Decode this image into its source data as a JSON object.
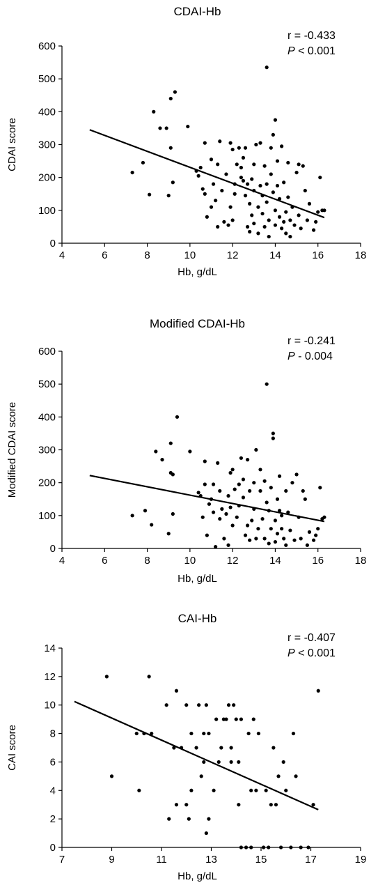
{
  "chart_data": [
    {
      "type": "scatter",
      "title": "CDAI-Hb",
      "xlabel": "Hb, g/dL",
      "ylabel": "CDAI score",
      "xlim": [
        4,
        18
      ],
      "ylim": [
        0,
        600
      ],
      "xticks": [
        4,
        6,
        8,
        10,
        12,
        14,
        16,
        18
      ],
      "yticks": [
        0,
        100,
        200,
        300,
        400,
        500,
        600
      ],
      "grid": false,
      "annotation": {
        "r": "r = -0.433",
        "p_italic": "P",
        "p_rest": " < 0.001"
      },
      "trendline": {
        "x": [
          5.3,
          16.3
        ],
        "y": [
          345,
          78
        ]
      },
      "points": [
        [
          7.3,
          215
        ],
        [
          7.8,
          245
        ],
        [
          8.1,
          148
        ],
        [
          8.3,
          400
        ],
        [
          8.6,
          350
        ],
        [
          8.9,
          350
        ],
        [
          9.0,
          145
        ],
        [
          9.1,
          440
        ],
        [
          9.1,
          290
        ],
        [
          9.2,
          185
        ],
        [
          9.3,
          460
        ],
        [
          9.9,
          355
        ],
        [
          10.3,
          220
        ],
        [
          10.4,
          205
        ],
        [
          10.5,
          230
        ],
        [
          10.6,
          165
        ],
        [
          10.7,
          305
        ],
        [
          10.7,
          150
        ],
        [
          10.8,
          80
        ],
        [
          11.0,
          255
        ],
        [
          11.0,
          110
        ],
        [
          11.1,
          180
        ],
        [
          11.2,
          130
        ],
        [
          11.3,
          50
        ],
        [
          11.3,
          240
        ],
        [
          11.4,
          310
        ],
        [
          11.5,
          160
        ],
        [
          11.6,
          65
        ],
        [
          11.7,
          210
        ],
        [
          11.8,
          55
        ],
        [
          11.9,
          305
        ],
        [
          11.9,
          110
        ],
        [
          12.0,
          70
        ],
        [
          12.0,
          285
        ],
        [
          12.1,
          180
        ],
        [
          12.1,
          150
        ],
        [
          12.2,
          240
        ],
        [
          12.3,
          290
        ],
        [
          12.4,
          200
        ],
        [
          12.4,
          230
        ],
        [
          12.5,
          260
        ],
        [
          12.5,
          190
        ],
        [
          12.6,
          145
        ],
        [
          12.6,
          290
        ],
        [
          12.7,
          50
        ],
        [
          12.7,
          180
        ],
        [
          12.8,
          35
        ],
        [
          12.8,
          120
        ],
        [
          12.9,
          195
        ],
        [
          12.9,
          85
        ],
        [
          13.0,
          160
        ],
        [
          13.0,
          240
        ],
        [
          13.0,
          60
        ],
        [
          13.1,
          300
        ],
        [
          13.2,
          110
        ],
        [
          13.2,
          30
        ],
        [
          13.3,
          305
        ],
        [
          13.3,
          175
        ],
        [
          13.4,
          145
        ],
        [
          13.4,
          90
        ],
        [
          13.5,
          235
        ],
        [
          13.5,
          50
        ],
        [
          13.6,
          535
        ],
        [
          13.6,
          180
        ],
        [
          13.6,
          125
        ],
        [
          13.7,
          20
        ],
        [
          13.7,
          70
        ],
        [
          13.8,
          290
        ],
        [
          13.8,
          210
        ],
        [
          13.9,
          330
        ],
        [
          13.9,
          155
        ],
        [
          14.0,
          375
        ],
        [
          14.0,
          100
        ],
        [
          14.0,
          55
        ],
        [
          14.1,
          175
        ],
        [
          14.1,
          250
        ],
        [
          14.2,
          135
        ],
        [
          14.2,
          80
        ],
        [
          14.3,
          45
        ],
        [
          14.3,
          295
        ],
        [
          14.4,
          185
        ],
        [
          14.4,
          65
        ],
        [
          14.5,
          95
        ],
        [
          14.5,
          30
        ],
        [
          14.6,
          140
        ],
        [
          14.6,
          245
        ],
        [
          14.7,
          70
        ],
        [
          14.7,
          20
        ],
        [
          14.8,
          110
        ],
        [
          14.9,
          55
        ],
        [
          15.0,
          215
        ],
        [
          15.1,
          240
        ],
        [
          15.1,
          85
        ],
        [
          15.2,
          45
        ],
        [
          15.3,
          235
        ],
        [
          15.4,
          160
        ],
        [
          15.5,
          70
        ],
        [
          15.6,
          120
        ],
        [
          15.8,
          40
        ],
        [
          15.9,
          65
        ],
        [
          16.0,
          95
        ],
        [
          16.1,
          200
        ],
        [
          16.2,
          100
        ],
        [
          16.3,
          100
        ]
      ]
    },
    {
      "type": "scatter",
      "title": "Modified CDAI-Hb",
      "xlabel": "Hb, g/dL",
      "ylabel": "Modified CDAI score",
      "xlim": [
        4,
        18
      ],
      "ylim": [
        0,
        600
      ],
      "xticks": [
        4,
        6,
        8,
        10,
        12,
        14,
        16,
        18
      ],
      "yticks": [
        0,
        100,
        200,
        300,
        400,
        500,
        600
      ],
      "grid": false,
      "annotation": {
        "r": "r = -0.241",
        "p_italic": "P",
        "p_rest": " - 0.004"
      },
      "trendline": {
        "x": [
          5.3,
          16.3
        ],
        "y": [
          222,
          82
        ]
      },
      "points": [
        [
          7.3,
          100
        ],
        [
          7.9,
          115
        ],
        [
          8.2,
          72
        ],
        [
          8.4,
          295
        ],
        [
          8.7,
          270
        ],
        [
          9.0,
          45
        ],
        [
          9.1,
          320
        ],
        [
          9.1,
          230
        ],
        [
          9.2,
          225
        ],
        [
          9.2,
          105
        ],
        [
          9.4,
          400
        ],
        [
          10.0,
          295
        ],
        [
          10.4,
          170
        ],
        [
          10.5,
          160
        ],
        [
          10.6,
          95
        ],
        [
          10.7,
          265
        ],
        [
          10.7,
          195
        ],
        [
          10.8,
          40
        ],
        [
          10.9,
          135
        ],
        [
          11.0,
          150
        ],
        [
          11.1,
          195
        ],
        [
          11.1,
          110
        ],
        [
          11.2,
          5
        ],
        [
          11.3,
          260
        ],
        [
          11.4,
          175
        ],
        [
          11.4,
          90
        ],
        [
          11.5,
          120
        ],
        [
          11.6,
          30
        ],
        [
          11.7,
          105
        ],
        [
          11.8,
          160
        ],
        [
          11.8,
          10
        ],
        [
          11.9,
          230
        ],
        [
          11.9,
          125
        ],
        [
          12.0,
          70
        ],
        [
          12.0,
          240
        ],
        [
          12.1,
          180
        ],
        [
          12.2,
          95
        ],
        [
          12.3,
          195
        ],
        [
          12.3,
          130
        ],
        [
          12.4,
          275
        ],
        [
          12.5,
          210
        ],
        [
          12.5,
          155
        ],
        [
          12.6,
          40
        ],
        [
          12.7,
          270
        ],
        [
          12.7,
          70
        ],
        [
          12.8,
          25
        ],
        [
          12.8,
          175
        ],
        [
          12.9,
          85
        ],
        [
          13.0,
          200
        ],
        [
          13.0,
          120
        ],
        [
          13.1,
          30
        ],
        [
          13.1,
          300
        ],
        [
          13.2,
          60
        ],
        [
          13.3,
          240
        ],
        [
          13.3,
          175
        ],
        [
          13.4,
          90
        ],
        [
          13.5,
          205
        ],
        [
          13.5,
          30
        ],
        [
          13.6,
          500
        ],
        [
          13.6,
          140
        ],
        [
          13.7,
          115
        ],
        [
          13.7,
          15
        ],
        [
          13.8,
          60
        ],
        [
          13.8,
          185
        ],
        [
          13.9,
          350
        ],
        [
          13.9,
          335
        ],
        [
          14.0,
          85
        ],
        [
          14.0,
          20
        ],
        [
          14.1,
          150
        ],
        [
          14.1,
          45
        ],
        [
          14.2,
          220
        ],
        [
          14.2,
          115
        ],
        [
          14.3,
          100
        ],
        [
          14.3,
          60
        ],
        [
          14.4,
          30
        ],
        [
          14.5,
          175
        ],
        [
          14.5,
          10
        ],
        [
          14.6,
          110
        ],
        [
          14.7,
          55
        ],
        [
          14.8,
          200
        ],
        [
          14.9,
          25
        ],
        [
          15.0,
          225
        ],
        [
          15.1,
          95
        ],
        [
          15.2,
          30
        ],
        [
          15.3,
          175
        ],
        [
          15.4,
          150
        ],
        [
          15.5,
          10
        ],
        [
          15.6,
          50
        ],
        [
          15.8,
          25
        ],
        [
          15.9,
          40
        ],
        [
          16.0,
          60
        ],
        [
          16.1,
          185
        ],
        [
          16.2,
          90
        ],
        [
          16.3,
          95
        ]
      ]
    },
    {
      "type": "scatter",
      "title": "CAI-Hb",
      "xlabel": "Hb, g/dL",
      "ylabel": "CAI score",
      "xlim": [
        7,
        19
      ],
      "ylim": [
        0,
        14
      ],
      "xticks": [
        7,
        9,
        11,
        13,
        15,
        17,
        19
      ],
      "yticks": [
        0,
        2,
        4,
        6,
        8,
        10,
        12,
        14
      ],
      "grid": false,
      "annotation": {
        "r": "r = -0.407",
        "p_italic": "P",
        "p_rest": " < 0.001"
      },
      "trendline": {
        "x": [
          7.5,
          17.3
        ],
        "y": [
          10.25,
          2.65
        ]
      },
      "points": [
        [
          8.8,
          12
        ],
        [
          9.0,
          5
        ],
        [
          10.0,
          8
        ],
        [
          10.1,
          4
        ],
        [
          10.3,
          8
        ],
        [
          10.5,
          12
        ],
        [
          10.6,
          8
        ],
        [
          11.2,
          10
        ],
        [
          11.3,
          2
        ],
        [
          11.5,
          7
        ],
        [
          11.6,
          3
        ],
        [
          11.6,
          11
        ],
        [
          11.8,
          7
        ],
        [
          12.0,
          3
        ],
        [
          12.0,
          10
        ],
        [
          12.1,
          2
        ],
        [
          12.2,
          8
        ],
        [
          12.2,
          4
        ],
        [
          12.4,
          7
        ],
        [
          12.5,
          10
        ],
        [
          12.6,
          5
        ],
        [
          12.7,
          8
        ],
        [
          12.7,
          6
        ],
        [
          12.8,
          1
        ],
        [
          12.8,
          10
        ],
        [
          12.9,
          2
        ],
        [
          12.9,
          8
        ],
        [
          13.1,
          4
        ],
        [
          13.2,
          9
        ],
        [
          13.3,
          6
        ],
        [
          13.4,
          7
        ],
        [
          13.5,
          9
        ],
        [
          13.6,
          9
        ],
        [
          13.7,
          10
        ],
        [
          13.8,
          6
        ],
        [
          13.8,
          7
        ],
        [
          13.9,
          10
        ],
        [
          14.0,
          9
        ],
        [
          14.1,
          3
        ],
        [
          14.1,
          6
        ],
        [
          14.2,
          9
        ],
        [
          14.2,
          0
        ],
        [
          14.4,
          0
        ],
        [
          14.5,
          8
        ],
        [
          14.6,
          4
        ],
        [
          14.6,
          0
        ],
        [
          14.7,
          9
        ],
        [
          14.8,
          4
        ],
        [
          14.9,
          8
        ],
        [
          15.1,
          0
        ],
        [
          15.2,
          4
        ],
        [
          15.3,
          0
        ],
        [
          15.4,
          3
        ],
        [
          15.5,
          7
        ],
        [
          15.6,
          3
        ],
        [
          15.7,
          5
        ],
        [
          15.8,
          0
        ],
        [
          15.9,
          6
        ],
        [
          16.0,
          4
        ],
        [
          16.2,
          0
        ],
        [
          16.3,
          8
        ],
        [
          16.4,
          5
        ],
        [
          16.6,
          0
        ],
        [
          16.9,
          0
        ],
        [
          17.1,
          3
        ],
        [
          17.3,
          11
        ]
      ]
    }
  ]
}
